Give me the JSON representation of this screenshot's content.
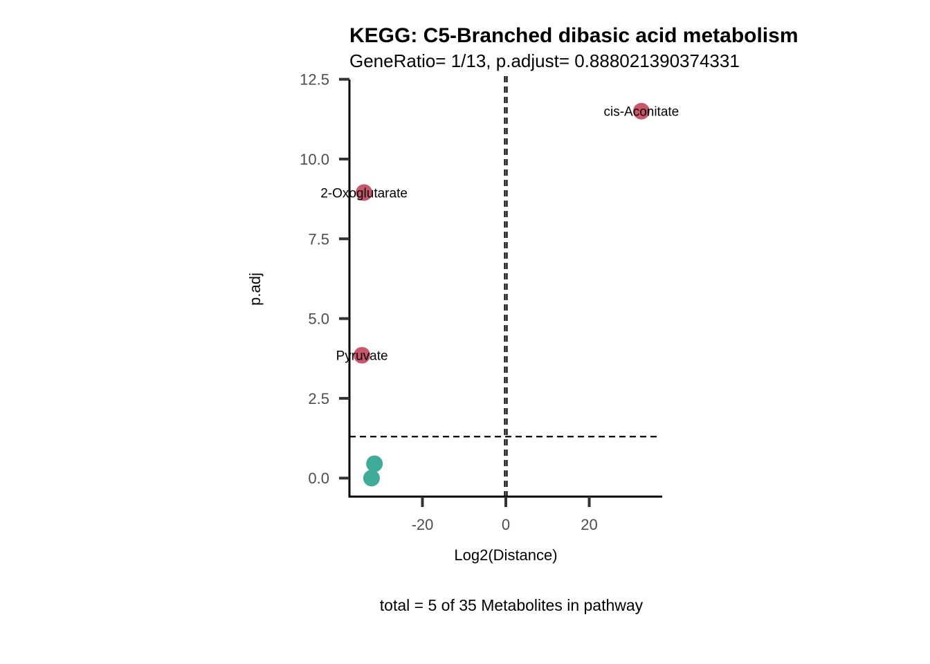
{
  "chart_data": {
    "type": "scatter",
    "title": "KEGG: C5-Branched dibasic acid metabolism",
    "subtitle": "GeneRatio= 1/13, p.adjust= 0.888021390374331",
    "xlabel": "Log2(Distance)",
    "ylabel": "p.adj",
    "caption": "total = 5 of 35 Metabolites in pathway",
    "xlim": [
      -37.5,
      37.5
    ],
    "ylim": [
      -0.58,
      12.6
    ],
    "x_ticks": [
      -20,
      0,
      20
    ],
    "x_tick_labels": [
      "-20",
      "0",
      "20"
    ],
    "y_ticks": [
      0,
      2.5,
      5,
      7.5,
      10,
      12.5
    ],
    "y_tick_labels": [
      "0.0",
      "2.5",
      "5.0",
      "7.5",
      "10.0",
      "12.5"
    ],
    "reference_lines": {
      "vertical_x": [
        -0.25,
        0.25
      ],
      "horizontal_y": 1.3
    },
    "grid": false,
    "legend": "none",
    "colors": {
      "up": "#c9566a",
      "down": "#3fac99"
    },
    "points": [
      {
        "x": 32.5,
        "y": 11.5,
        "label": "cis-Aconitate",
        "group": "up"
      },
      {
        "x": -34,
        "y": 8.95,
        "label": "2-Oxoglutarate",
        "group": "up"
      },
      {
        "x": -34.5,
        "y": 3.85,
        "label": "Pyruvate",
        "group": "up"
      },
      {
        "x": -31.5,
        "y": 0.45,
        "label": "",
        "group": "down"
      },
      {
        "x": -32.2,
        "y": 0.0,
        "label": "",
        "group": "down"
      }
    ]
  }
}
